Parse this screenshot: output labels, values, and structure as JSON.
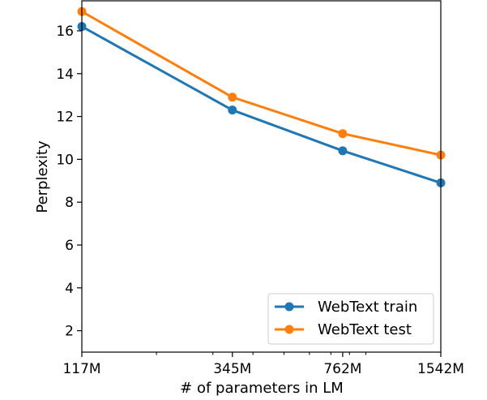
{
  "chart_data": {
    "type": "line",
    "x_scale": "log",
    "x": [
      117,
      345,
      762,
      1542
    ],
    "x_unit": "M",
    "xlabel": "# of parameters in LM",
    "ylabel": "Perplexity",
    "xticks": [
      "117M",
      "345M",
      "762M",
      "1542M"
    ],
    "yticks": [
      2,
      4,
      6,
      8,
      10,
      12,
      14,
      16
    ],
    "ylim": [
      1,
      17.4
    ],
    "grid": false,
    "legend_position": "lower right",
    "series": [
      {
        "name": "WebText train",
        "color": "#1f77b4",
        "values": [
          16.2,
          12.3,
          10.4,
          8.9
        ]
      },
      {
        "name": "WebText test",
        "color": "#ff7f0e",
        "values": [
          16.9,
          12.9,
          11.2,
          10.2
        ]
      }
    ]
  }
}
